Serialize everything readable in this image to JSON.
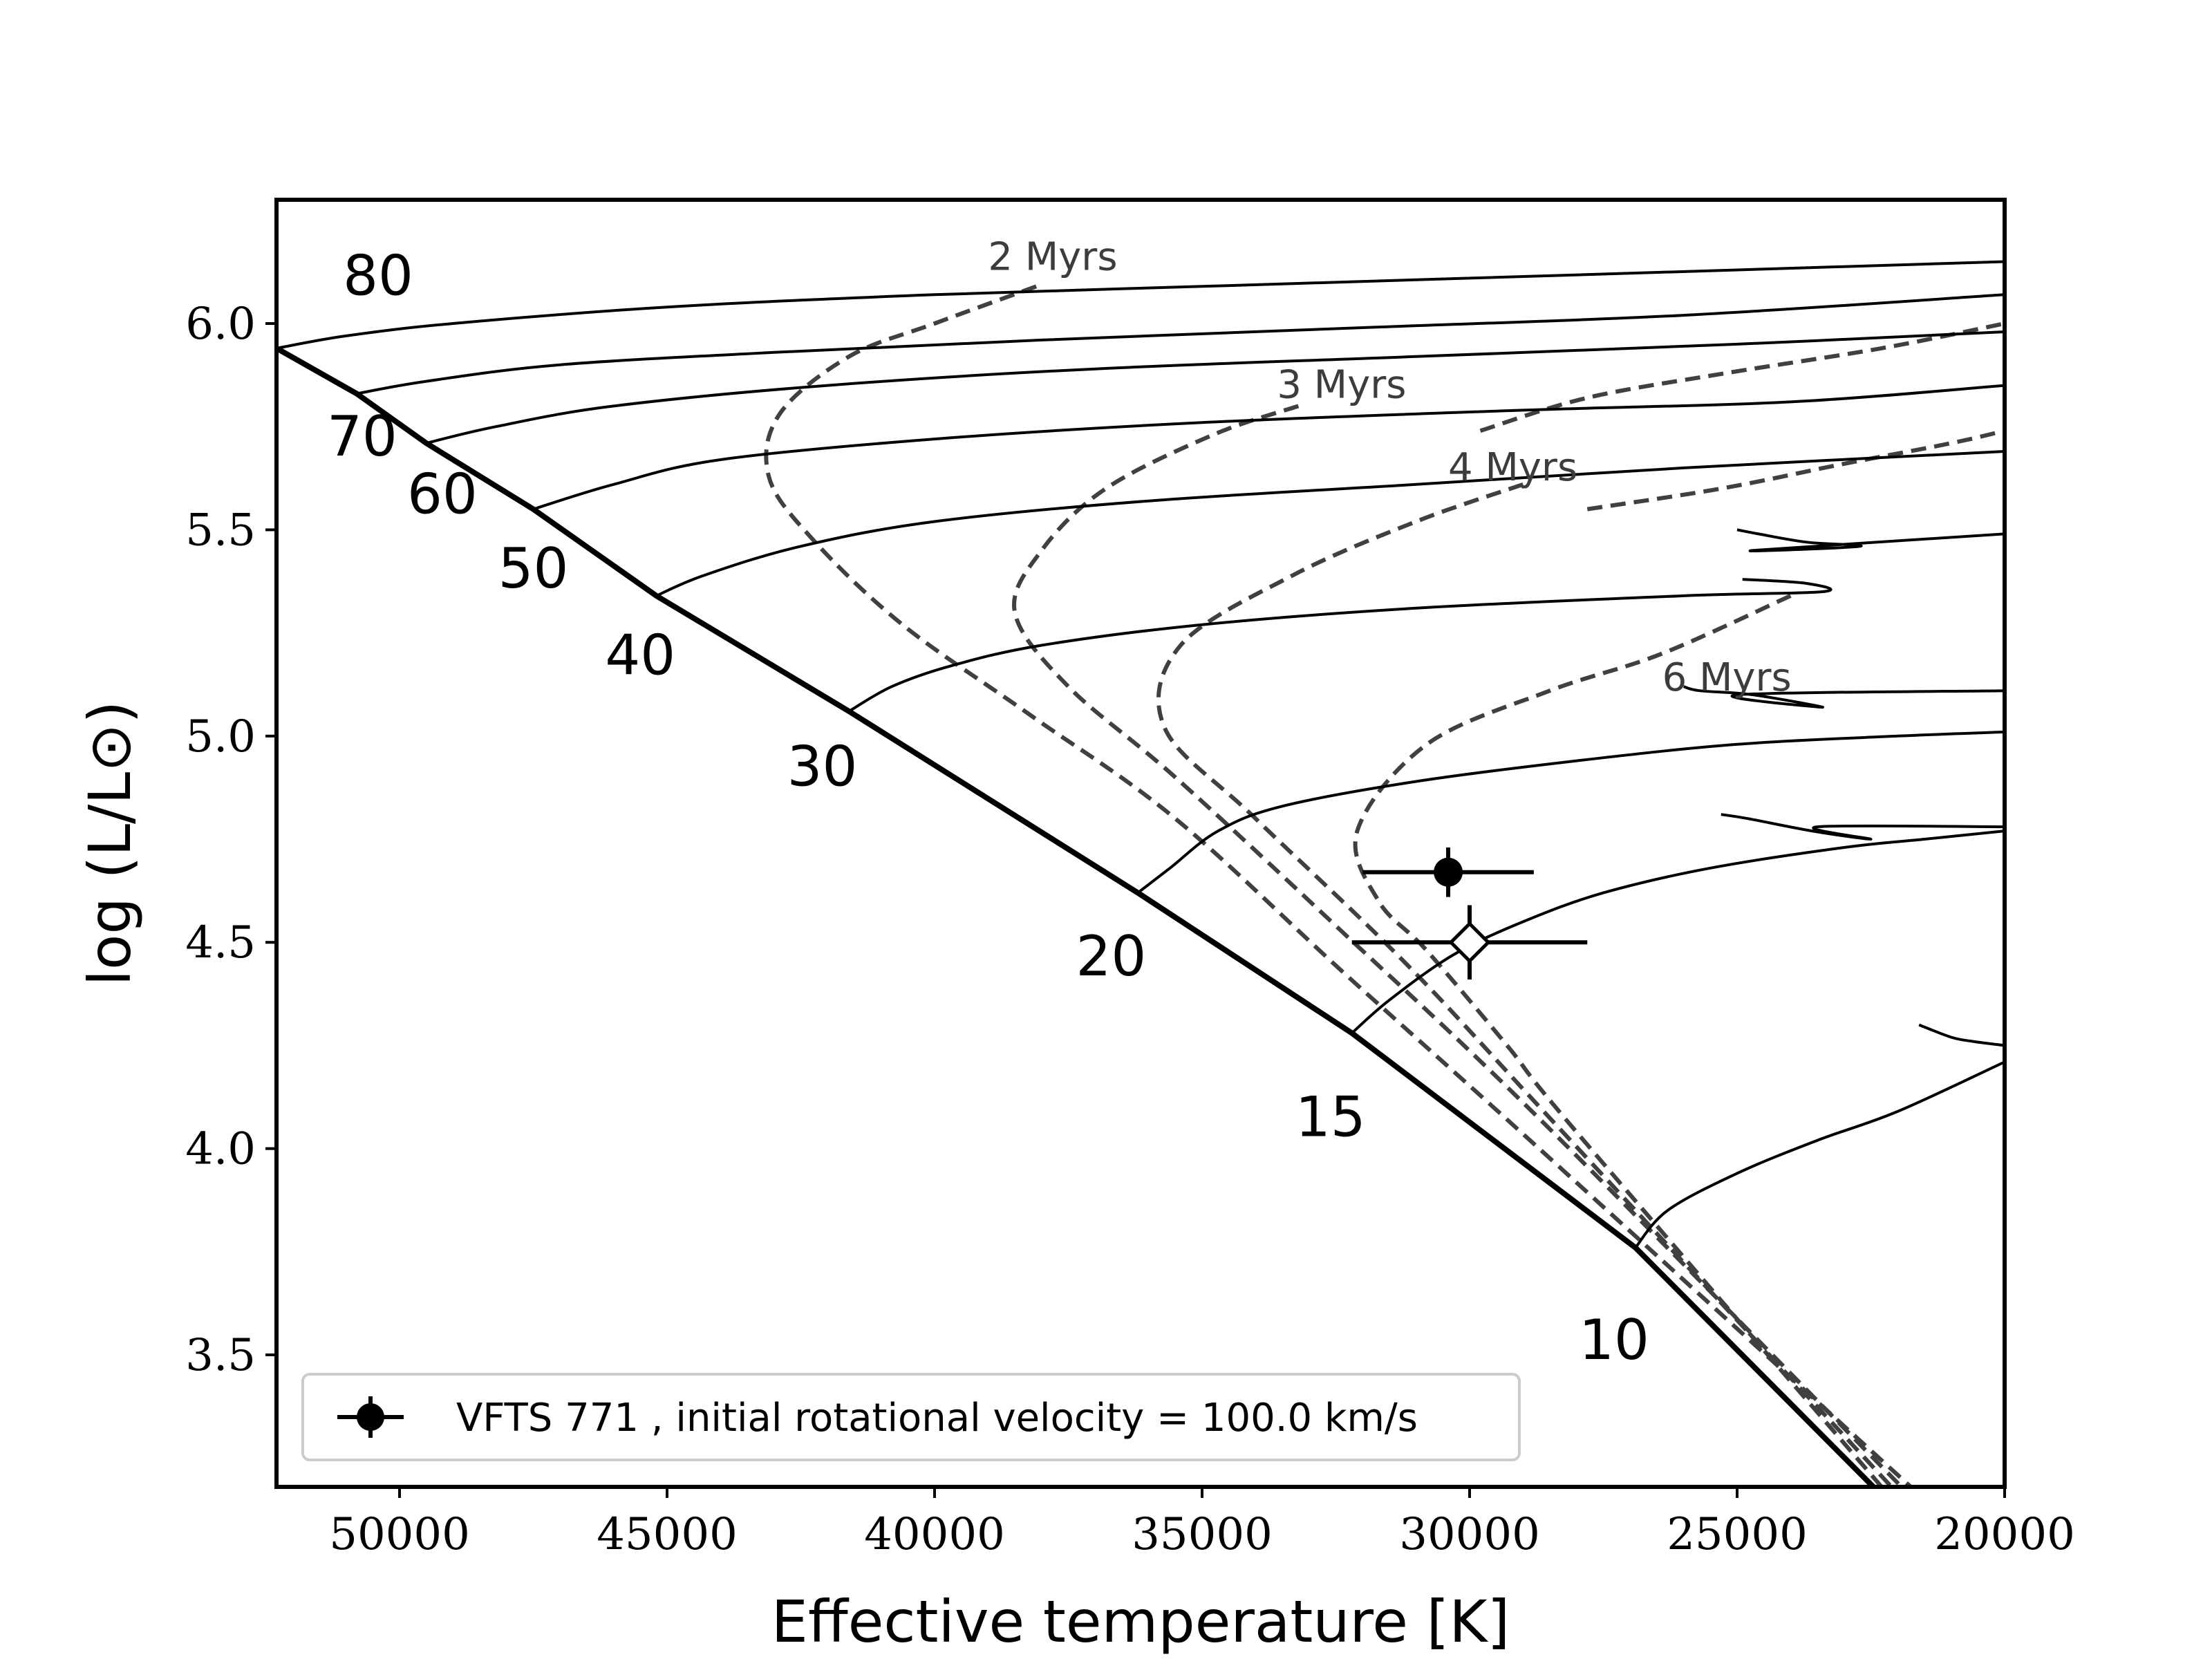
{
  "chart_data": {
    "type": "line",
    "xlabel": "Effective temperature [K]",
    "ylabel": "log (L/L⊙)",
    "xlim": [
      52300,
      20000
    ],
    "ylim": [
      3.18,
      6.3
    ],
    "x_inverted": true,
    "xticks": [
      {
        "value": 50000,
        "label": "50000"
      },
      {
        "value": 45000,
        "label": "45000"
      },
      {
        "value": 40000,
        "label": "40000"
      },
      {
        "value": 35000,
        "label": "35000"
      },
      {
        "value": 30000,
        "label": "30000"
      },
      {
        "value": 25000,
        "label": "25000"
      },
      {
        "value": 20000,
        "label": "20000"
      }
    ],
    "yticks": [
      {
        "value": 3.5,
        "label": "3.5"
      },
      {
        "value": 4.0,
        "label": "4.0"
      },
      {
        "value": 4.5,
        "label": "4.5"
      },
      {
        "value": 5.0,
        "label": "5.0"
      },
      {
        "value": 5.5,
        "label": "5.5"
      },
      {
        "value": 6.0,
        "label": "6.0"
      }
    ],
    "zams": [
      [
        52300,
        5.94
      ],
      [
        50800,
        5.83
      ],
      [
        49500,
        5.71
      ],
      [
        47500,
        5.55
      ],
      [
        45200,
        5.34
      ],
      [
        41600,
        5.06
      ],
      [
        36200,
        4.62
      ],
      [
        32200,
        4.28
      ],
      [
        26900,
        3.76
      ],
      [
        22300,
        3.16
      ]
    ],
    "tracks": [
      {
        "mass": "80",
        "label": "80",
        "label_at": [
          50400,
          6.07
        ],
        "points": [
          [
            52300,
            5.94
          ],
          [
            51000,
            5.97
          ],
          [
            49000,
            6.0
          ],
          [
            45000,
            6.04
          ],
          [
            40000,
            6.07
          ],
          [
            35000,
            6.09
          ],
          [
            30000,
            6.11
          ],
          [
            25000,
            6.13
          ],
          [
            20000,
            6.15
          ]
        ]
      },
      {
        "mass": "70",
        "label": "70",
        "label_at": [
          50700,
          5.68
        ],
        "points": [
          [
            50800,
            5.83
          ],
          [
            49500,
            5.86
          ],
          [
            47000,
            5.9
          ],
          [
            43000,
            5.93
          ],
          [
            38000,
            5.96
          ],
          [
            32000,
            5.99
          ],
          [
            26000,
            6.02
          ],
          [
            20000,
            6.07
          ]
        ]
      },
      {
        "mass": "60",
        "label": "60",
        "label_at": [
          49200,
          5.54
        ],
        "points": [
          [
            49500,
            5.71
          ],
          [
            48200,
            5.75
          ],
          [
            46000,
            5.8
          ],
          [
            42000,
            5.85
          ],
          [
            37000,
            5.89
          ],
          [
            31000,
            5.92
          ],
          [
            25000,
            5.95
          ],
          [
            20000,
            5.98
          ]
        ]
      },
      {
        "mass": "50",
        "label": "50",
        "label_at": [
          47500,
          5.36
        ],
        "points": [
          [
            47500,
            5.55
          ],
          [
            46000,
            5.61
          ],
          [
            44000,
            5.67
          ],
          [
            40000,
            5.72
          ],
          [
            35000,
            5.76
          ],
          [
            29000,
            5.79
          ],
          [
            24000,
            5.81
          ],
          [
            20000,
            5.85
          ]
        ]
      },
      {
        "mass": "40",
        "label": "40",
        "label_at": [
          45500,
          5.15
        ],
        "points": [
          [
            45200,
            5.34
          ],
          [
            44300,
            5.39
          ],
          [
            42500,
            5.46
          ],
          [
            40000,
            5.52
          ],
          [
            36000,
            5.57
          ],
          [
            31000,
            5.61
          ],
          [
            26000,
            5.65
          ],
          [
            20000,
            5.69
          ]
        ]
      },
      {
        "mass": "30",
        "label": "30",
        "label_at": [
          42100,
          4.88
        ],
        "points": [
          [
            41600,
            5.06
          ],
          [
            40800,
            5.12
          ],
          [
            39700,
            5.17
          ],
          [
            38000,
            5.22
          ],
          [
            35000,
            5.27
          ],
          [
            31000,
            5.31
          ],
          [
            26000,
            5.34
          ],
          [
            23400,
            5.35
          ],
          [
            23700,
            5.37
          ],
          [
            24900,
            5.38
          ]
        ]
      },
      {
        "mass": "20",
        "label": "20",
        "label_at": [
          36700,
          4.42
        ],
        "points": [
          [
            36200,
            4.62
          ],
          [
            35600,
            4.68
          ],
          [
            34700,
            4.77
          ],
          [
            33500,
            4.83
          ],
          [
            31000,
            4.89
          ],
          [
            28000,
            4.94
          ],
          [
            25000,
            4.98
          ],
          [
            22000,
            5.0
          ],
          [
            20000,
            5.01
          ]
        ]
      },
      {
        "mass": "15",
        "label": "15",
        "label_at": [
          32600,
          4.03
        ],
        "points": [
          [
            32200,
            4.28
          ],
          [
            31500,
            4.36
          ],
          [
            30300,
            4.47
          ],
          [
            29000,
            4.55
          ],
          [
            27500,
            4.62
          ],
          [
            25500,
            4.68
          ],
          [
            23000,
            4.73
          ],
          [
            21500,
            4.75
          ],
          [
            20000,
            4.77
          ]
        ]
      },
      {
        "mass": "10",
        "label": "10",
        "label_at": [
          27300,
          3.49
        ],
        "points": [
          [
            26900,
            3.76
          ],
          [
            26300,
            3.85
          ],
          [
            25000,
            3.94
          ],
          [
            23500,
            4.02
          ],
          [
            22000,
            4.09
          ],
          [
            20000,
            4.21
          ]
        ]
      }
    ],
    "track_tails": [
      [
        [
          25000,
          5.5
        ],
        [
          24600,
          5.49
        ],
        [
          23700,
          5.47
        ],
        [
          22700,
          5.46
        ],
        [
          24700,
          5.45
        ],
        [
          20000,
          5.49
        ]
      ],
      [
        [
          26000,
          5.12
        ],
        [
          25700,
          5.11
        ],
        [
          24700,
          5.1
        ],
        [
          23400,
          5.07
        ],
        [
          25000,
          5.1
        ],
        [
          20000,
          5.11
        ]
      ],
      [
        [
          25300,
          4.81
        ],
        [
          24800,
          4.8
        ],
        [
          23600,
          4.77
        ],
        [
          22500,
          4.75
        ],
        [
          23500,
          4.78
        ],
        [
          20000,
          4.78
        ]
      ],
      [
        [
          21600,
          4.3
        ],
        [
          21000,
          4.27
        ],
        [
          20600,
          4.26
        ],
        [
          20000,
          4.25
        ]
      ]
    ],
    "isochrones": [
      {
        "label": "2 Myrs",
        "label_at": [
          39000,
          6.13
        ],
        "points": [
          [
            38100,
            6.09
          ],
          [
            40000,
            6.0
          ],
          [
            41600,
            5.92
          ],
          [
            42900,
            5.78
          ],
          [
            43100,
            5.63
          ],
          [
            42300,
            5.48
          ],
          [
            40600,
            5.27
          ],
          [
            38200,
            5.05
          ],
          [
            35500,
            4.8
          ],
          [
            32300,
            4.42
          ],
          [
            28700,
            4.0
          ],
          [
            21500,
            3.15
          ]
        ]
      },
      {
        "label": "3 Myrs",
        "label_at": [
          33600,
          5.82
        ],
        "points": [
          [
            33200,
            5.8
          ],
          [
            34800,
            5.73
          ],
          [
            36800,
            5.6
          ],
          [
            38000,
            5.45
          ],
          [
            38500,
            5.3
          ],
          [
            37500,
            5.12
          ],
          [
            35500,
            4.9
          ],
          [
            32500,
            4.54
          ],
          [
            28600,
            4.06
          ],
          [
            21700,
            3.15
          ]
        ]
      },
      {
        "label": "4 Myrs",
        "label_at": [
          30400,
          5.62
        ],
        "points": [
          [
            29000,
            5.61
          ],
          [
            31000,
            5.52
          ],
          [
            33300,
            5.39
          ],
          [
            35400,
            5.22
          ],
          [
            35700,
            5.02
          ],
          [
            34000,
            4.8
          ],
          [
            31200,
            4.45
          ],
          [
            28400,
            4.06
          ],
          [
            21900,
            3.15
          ]
        ]
      },
      {
        "label": "6 Myrs",
        "label_at": [
          26400,
          5.11
        ],
        "points": [
          [
            24000,
            5.34
          ],
          [
            26400,
            5.2
          ],
          [
            28500,
            5.11
          ],
          [
            30800,
            4.98
          ],
          [
            32100,
            4.77
          ],
          [
            31700,
            4.6
          ],
          [
            30800,
            4.48
          ],
          [
            29300,
            4.25
          ],
          [
            28000,
            4.04
          ],
          [
            22100,
            3.15
          ]
        ]
      },
      {
        "label": "",
        "label_at": null,
        "points": [
          [
            29800,
            5.74
          ],
          [
            27800,
            5.82
          ],
          [
            25200,
            5.88
          ],
          [
            22300,
            5.94
          ],
          [
            20000,
            6.0
          ]
        ]
      },
      {
        "label": "",
        "label_at": null,
        "points": [
          [
            27800,
            5.55
          ],
          [
            25300,
            5.6
          ],
          [
            23000,
            5.66
          ],
          [
            21000,
            5.71
          ],
          [
            20000,
            5.74
          ]
        ]
      }
    ],
    "points": [
      {
        "name": "VFTS 771",
        "type": "filled",
        "x": 30400,
        "y": 4.67,
        "xerr": 1600,
        "yerr": 0.06
      },
      {
        "name": "",
        "type": "open-diamond",
        "x": 30000,
        "y": 4.5,
        "xerr": 2200,
        "yerr": 0.09
      }
    ],
    "legend": {
      "position": "lower-left",
      "entries": [
        {
          "marker": "filled-circle-errorbar",
          "label": "VFTS 771 , initial rotational velocity = 100.0 km/s"
        }
      ]
    }
  }
}
